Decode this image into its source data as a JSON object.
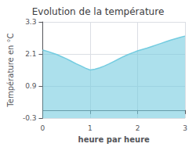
{
  "chart_data": {
    "type": "area",
    "title": "Evolution de la température",
    "xlabel": "heure par heure",
    "ylabel": "Température en °C",
    "x": [
      0.0,
      0.1,
      0.2,
      0.3,
      0.4,
      0.5,
      0.6,
      0.7,
      0.8,
      0.9,
      1.0,
      1.1,
      1.2,
      1.3,
      1.4,
      1.5,
      1.6,
      1.7,
      1.8,
      1.9,
      2.0,
      2.1,
      2.2,
      2.3,
      2.4,
      2.5,
      2.6,
      2.7,
      2.8,
      2.9,
      3.0
    ],
    "values": [
      2.25,
      2.2,
      2.14,
      2.08,
      2.0,
      1.92,
      1.83,
      1.74,
      1.66,
      1.57,
      1.5,
      1.53,
      1.58,
      1.65,
      1.73,
      1.82,
      1.91,
      2.0,
      2.08,
      2.15,
      2.22,
      2.27,
      2.32,
      2.38,
      2.44,
      2.5,
      2.56,
      2.62,
      2.67,
      2.72,
      2.77
    ],
    "color": "#74cce0",
    "xlim": [
      0,
      3
    ],
    "xticks": [
      0,
      1,
      2,
      3
    ],
    "ylim": [
      -0.3,
      3.3
    ],
    "yticks": [
      -0.3,
      0.9,
      2.1,
      3.3
    ],
    "grid": true
  }
}
